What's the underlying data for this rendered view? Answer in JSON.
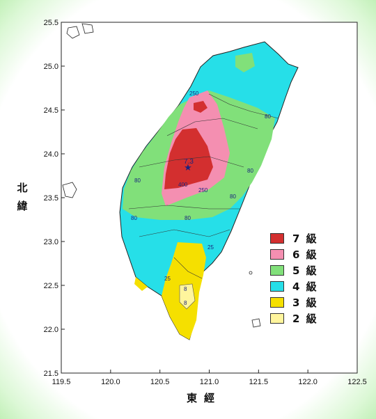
{
  "map": {
    "x_axis_title": "東經",
    "y_axis_title": "北緯",
    "x_ticks": [
      "119.5",
      "120.0",
      "120.5",
      "121.0",
      "121.5",
      "122.0",
      "122.5"
    ],
    "y_ticks": [
      "25.5",
      "25.0",
      "24.5",
      "24.0",
      "23.5",
      "23.0",
      "22.5",
      "22.0",
      "21.5"
    ],
    "x_range": [
      119.5,
      122.5
    ],
    "y_range": [
      21.5,
      25.5
    ],
    "epicenter": {
      "label": "7.3",
      "lon": 120.82,
      "lat": 23.85
    },
    "contour_labels": [
      "250",
      "400",
      "250",
      "80",
      "80",
      "80",
      "80",
      "80",
      "80",
      "25",
      "25",
      "8",
      "8"
    ]
  },
  "legend": {
    "items": [
      {
        "label": "7 級",
        "color": "#d32f2f"
      },
      {
        "label": "6 級",
        "color": "#f48fb1"
      },
      {
        "label": "5 級",
        "color": "#81e07a"
      },
      {
        "label": "4 級",
        "color": "#26dfe8"
      },
      {
        "label": "3 級",
        "color": "#f5e000"
      },
      {
        "label": "2 級",
        "color": "#fff59d"
      }
    ]
  }
}
